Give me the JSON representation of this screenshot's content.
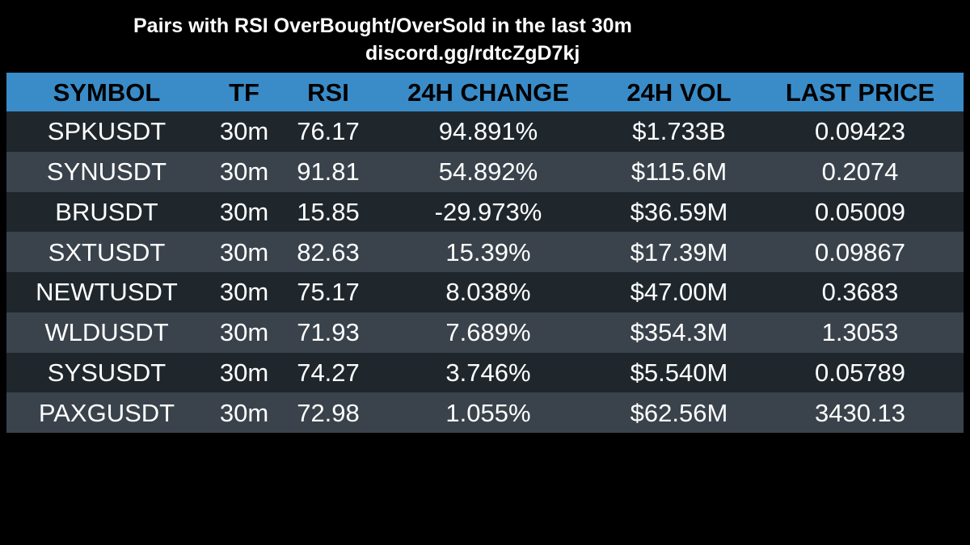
{
  "title": "Pairs with RSI OverBought/OverSold in the last 30m",
  "subtitle": "discord.gg/rdtcZgD7kj",
  "colors": {
    "background": "#000000",
    "header_bg": "#3a8cc8",
    "row_dark": "#1f272d",
    "row_light": "#3a434b",
    "text": "#ffffff",
    "header_text": "#000000"
  },
  "table": {
    "headers": [
      "SYMBOL",
      "TF",
      "RSI",
      "24H CHANGE",
      "24H VOL",
      "LAST PRICE"
    ],
    "rows": [
      [
        "SPKUSDT",
        "30m",
        "76.17",
        "94.891%",
        "$1.733B",
        "0.09423"
      ],
      [
        "SYNUSDT",
        "30m",
        "91.81",
        "54.892%",
        "$115.6M",
        "0.2074"
      ],
      [
        "BRUSDT",
        "30m",
        "15.85",
        "-29.973%",
        "$36.59M",
        "0.05009"
      ],
      [
        "SXTUSDT",
        "30m",
        "82.63",
        "15.39%",
        "$17.39M",
        "0.09867"
      ],
      [
        "NEWTUSDT",
        "30m",
        "75.17",
        "8.038%",
        "$47.00M",
        "0.3683"
      ],
      [
        "WLDUSDT",
        "30m",
        "71.93",
        "7.689%",
        "$354.3M",
        "1.3053"
      ],
      [
        "SYSUSDT",
        "30m",
        "74.27",
        "3.746%",
        "$5.540M",
        "0.05789"
      ],
      [
        "PAXGUSDT",
        "30m",
        "72.98",
        "1.055%",
        "$62.56M",
        "3430.13"
      ]
    ]
  }
}
